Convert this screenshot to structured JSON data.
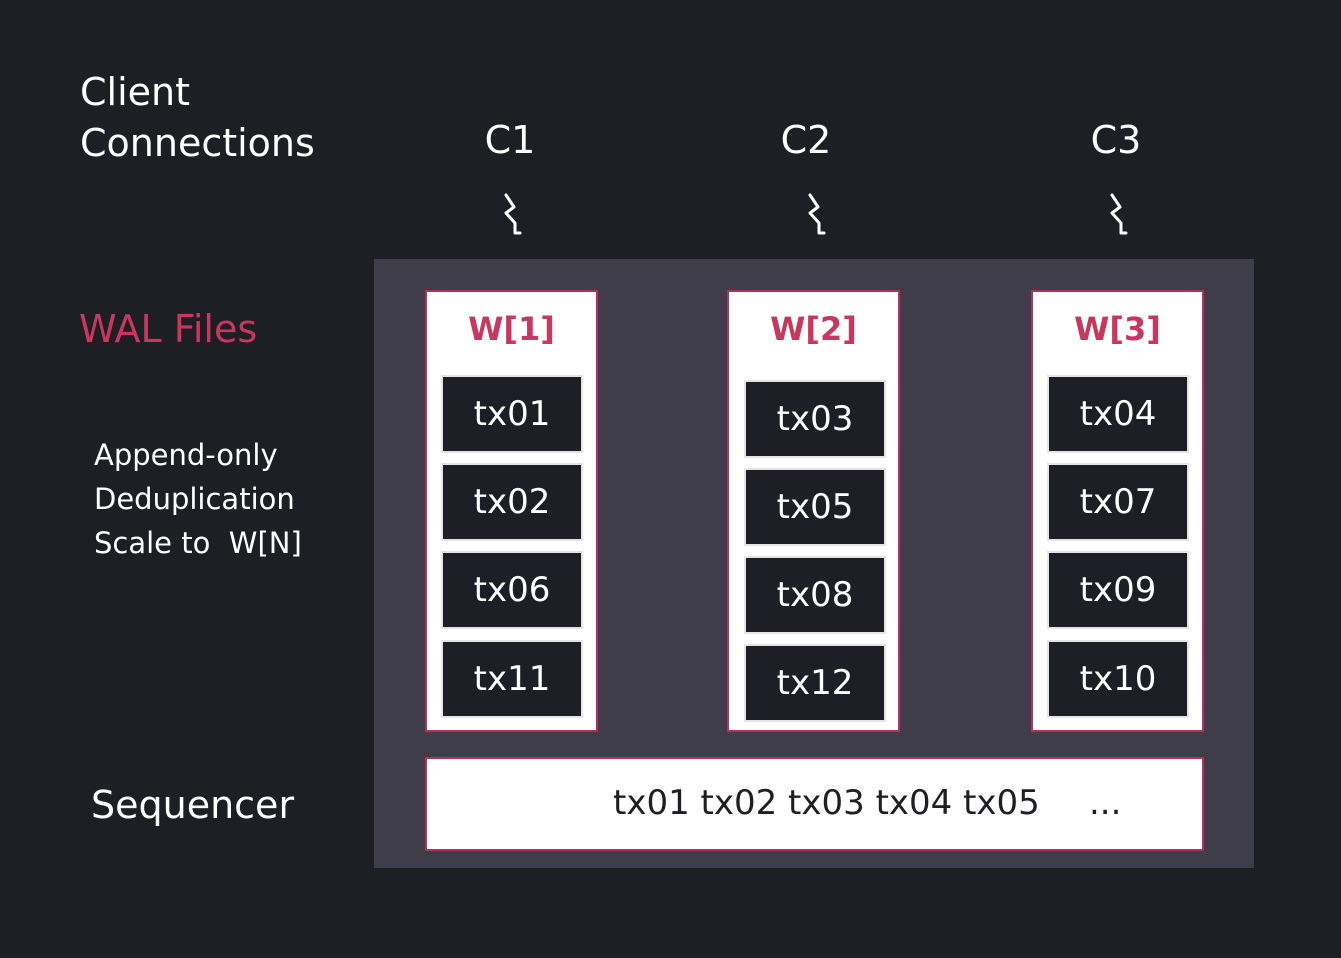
{
  "labels": {
    "client_connections": "Client Connections",
    "client_line1": "Client",
    "client_line2": "Connections",
    "wal_files": "WAL Files",
    "features": [
      "Append-only",
      "Deduplication",
      "Scale to  W[N]"
    ],
    "sequencer": "Sequencer"
  },
  "connections": [
    {
      "name": "C1",
      "icon": "lightning-bolt-icon"
    },
    {
      "name": "C2",
      "icon": "lightning-bolt-icon"
    },
    {
      "name": "C3",
      "icon": "lightning-bolt-icon"
    }
  ],
  "wal": [
    {
      "title": "W[1]",
      "tx": [
        "tx01",
        "tx02",
        "tx06",
        "tx11"
      ]
    },
    {
      "title": "W[2]",
      "tx": [
        "tx03",
        "tx05",
        "tx08",
        "tx12"
      ]
    },
    {
      "title": "W[3]",
      "tx": [
        "tx04",
        "tx07",
        "tx09",
        "tx10"
      ]
    }
  ],
  "sequencer": {
    "sequence": "tx01 tx02 tx03 tx04 tx05",
    "ellipsis": "..."
  },
  "colors": {
    "background": "#1e1f24",
    "panel": "#3e3d49",
    "accent": "#c9375f",
    "tx_box": "#1e1f26"
  }
}
